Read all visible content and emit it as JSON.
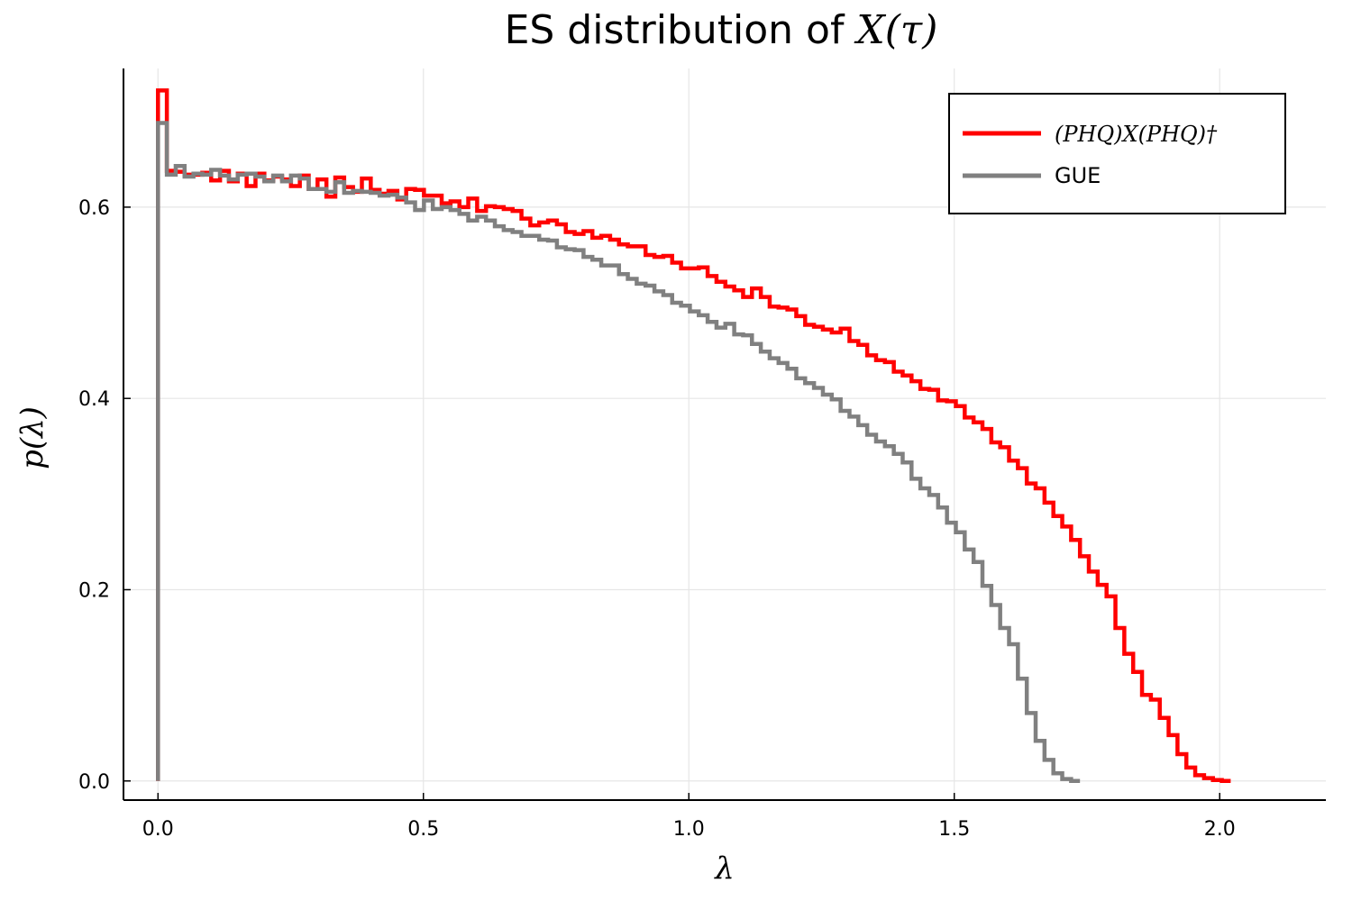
{
  "chart_data": {
    "type": "line",
    "step": true,
    "title": {
      "prefix": "ES distribution of ",
      "math": "X(τ)"
    },
    "xlabel": "λ",
    "ylabel": "p(λ)",
    "xlim": [
      -0.065,
      2.2
    ],
    "ylim": [
      -0.02,
      0.745
    ],
    "xticks": [
      0.0,
      0.5,
      1.0,
      1.5,
      2.0
    ],
    "xtick_labels": [
      "0.0",
      "0.5",
      "1.0",
      "1.5",
      "2.0"
    ],
    "yticks": [
      0.0,
      0.2,
      0.4,
      0.6
    ],
    "ytick_labels": [
      "0.0",
      "0.2",
      "0.4",
      "0.6"
    ],
    "grid": true,
    "legend_position": "top-right",
    "bin_width": 0.0167,
    "series": [
      {
        "name": "(PHQ)X(PHQ)†",
        "color": "#ff0000",
        "start": 0.0,
        "values": [
          0.722,
          0.638,
          0.637,
          0.634,
          0.634,
          0.636,
          0.628,
          0.638,
          0.627,
          0.635,
          0.622,
          0.635,
          0.628,
          0.632,
          0.629,
          0.622,
          0.633,
          0.619,
          0.629,
          0.611,
          0.631,
          0.621,
          0.616,
          0.63,
          0.618,
          0.614,
          0.617,
          0.608,
          0.619,
          0.618,
          0.612,
          0.612,
          0.604,
          0.606,
          0.6,
          0.609,
          0.596,
          0.601,
          0.6,
          0.598,
          0.596,
          0.588,
          0.581,
          0.584,
          0.586,
          0.582,
          0.574,
          0.572,
          0.575,
          0.568,
          0.57,
          0.566,
          0.561,
          0.559,
          0.559,
          0.55,
          0.548,
          0.549,
          0.542,
          0.536,
          0.536,
          0.537,
          0.528,
          0.522,
          0.517,
          0.513,
          0.506,
          0.515,
          0.506,
          0.496,
          0.495,
          0.493,
          0.486,
          0.477,
          0.475,
          0.472,
          0.469,
          0.473,
          0.46,
          0.456,
          0.445,
          0.44,
          0.438,
          0.428,
          0.424,
          0.418,
          0.41,
          0.409,
          0.398,
          0.397,
          0.392,
          0.38,
          0.375,
          0.368,
          0.354,
          0.349,
          0.335,
          0.327,
          0.311,
          0.306,
          0.291,
          0.277,
          0.266,
          0.252,
          0.235,
          0.219,
          0.205,
          0.193,
          0.16,
          0.133,
          0.114,
          0.09,
          0.085,
          0.066,
          0.048,
          0.028,
          0.014,
          0.006,
          0.003,
          0.001,
          0.0
        ]
      },
      {
        "name": "GUE",
        "color": "#808080",
        "start": 0.0,
        "values": [
          0.688,
          0.634,
          0.643,
          0.632,
          0.635,
          0.634,
          0.639,
          0.633,
          0.629,
          0.634,
          0.635,
          0.632,
          0.627,
          0.633,
          0.627,
          0.633,
          0.63,
          0.619,
          0.619,
          0.616,
          0.626,
          0.615,
          0.617,
          0.616,
          0.615,
          0.612,
          0.613,
          0.61,
          0.605,
          0.597,
          0.607,
          0.598,
          0.6,
          0.597,
          0.593,
          0.586,
          0.59,
          0.586,
          0.58,
          0.576,
          0.574,
          0.57,
          0.57,
          0.566,
          0.565,
          0.558,
          0.556,
          0.555,
          0.548,
          0.545,
          0.539,
          0.539,
          0.53,
          0.525,
          0.52,
          0.518,
          0.512,
          0.508,
          0.5,
          0.497,
          0.491,
          0.487,
          0.48,
          0.474,
          0.478,
          0.467,
          0.466,
          0.457,
          0.449,
          0.442,
          0.437,
          0.431,
          0.421,
          0.416,
          0.411,
          0.404,
          0.399,
          0.387,
          0.381,
          0.372,
          0.362,
          0.355,
          0.35,
          0.342,
          0.333,
          0.316,
          0.306,
          0.299,
          0.286,
          0.27,
          0.26,
          0.242,
          0.229,
          0.204,
          0.184,
          0.16,
          0.143,
          0.107,
          0.071,
          0.042,
          0.022,
          0.008,
          0.002,
          0.0
        ]
      }
    ]
  }
}
